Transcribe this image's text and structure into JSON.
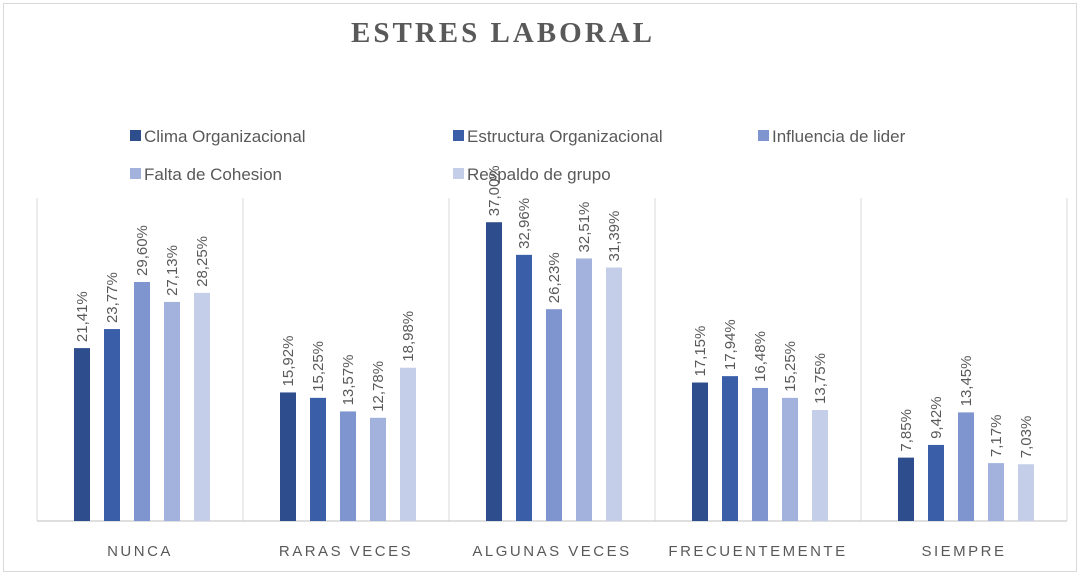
{
  "chart_data": {
    "type": "bar",
    "title": "ESTRES LABORAL",
    "categories": [
      "NUNCA",
      "RARAS VECES",
      "ALGUNAS VECES",
      "FRECUENTEMENTE",
      "SIEMPRE"
    ],
    "ylim": [
      0,
      40
    ],
    "series": [
      {
        "name": "Clima Organizacional",
        "color": "#2e4d8c",
        "values": [
          21.41,
          15.92,
          37.0,
          17.15,
          7.85
        ],
        "value_labels": [
          "21,41%",
          "15,92%",
          "37,00%",
          "17,15%",
          "7,85%"
        ]
      },
      {
        "name": "Estructura Organizacional",
        "color": "#3b5ea8",
        "values": [
          23.77,
          15.25,
          32.96,
          17.94,
          9.42
        ],
        "value_labels": [
          "23,77%",
          "15,25%",
          "32,96%",
          "17,94%",
          "9,42%"
        ]
      },
      {
        "name": "Influencia de lider",
        "color": "#7f95cf",
        "values": [
          29.6,
          13.57,
          26.23,
          16.48,
          13.45
        ],
        "value_labels": [
          "29,60%",
          "13,57%",
          "26,23%",
          "16,48%",
          "13,45%"
        ]
      },
      {
        "name": "Falta de Cohesion",
        "color": "#a2b2dc",
        "values": [
          27.13,
          12.78,
          32.51,
          15.25,
          7.17
        ],
        "value_labels": [
          "27,13%",
          "12,78%",
          "32,51%",
          "15,25%",
          "7,17%"
        ]
      },
      {
        "name": "Respaldo de grupo",
        "color": "#c4cee8",
        "values": [
          28.25,
          18.98,
          31.39,
          13.75,
          7.03
        ],
        "value_labels": [
          "28,25%",
          "18,98%",
          "31,39%",
          "13,75%",
          "7,03%"
        ]
      }
    ]
  }
}
